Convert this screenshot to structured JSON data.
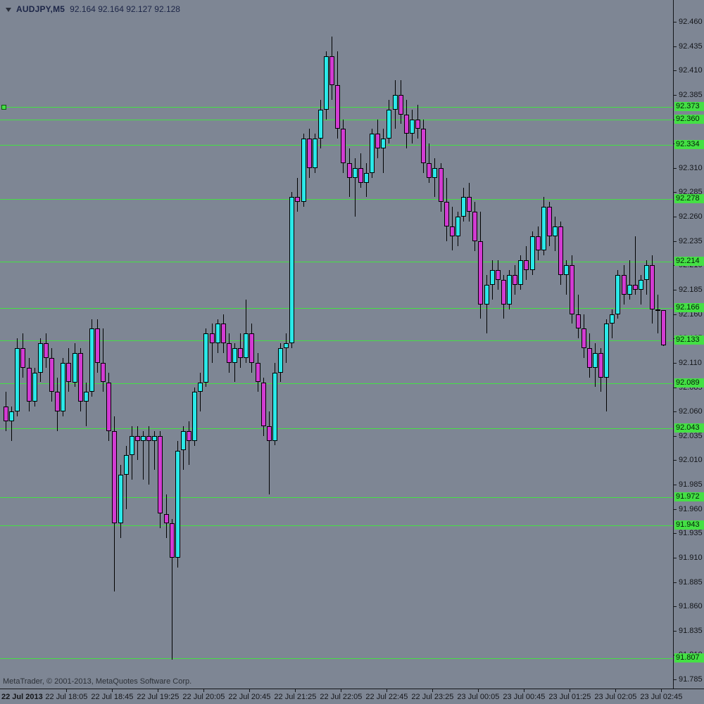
{
  "window": {
    "symbol_label": "AUDJPY,M5",
    "ohlc_values": "92.164 92.164 92.127 92.128",
    "watermark": "MetaTrader, © 2001-2013, MetaQuotes Software Corp."
  },
  "colors": {
    "background": "#7e8694",
    "foreground": "#14161a",
    "header_text": "#1c2547",
    "bull_candle": "#2be8e8",
    "bear_candle": "#d23bd2",
    "wick": "#000000",
    "level_line": "#44e044"
  },
  "axes": {
    "price_ticks": [
      "92.460",
      "92.435",
      "92.410",
      "92.385",
      "92.360",
      "92.335",
      "92.310",
      "92.285",
      "92.260",
      "92.235",
      "92.210",
      "92.185",
      "92.160",
      "92.135",
      "92.110",
      "92.085",
      "92.060",
      "92.035",
      "92.010",
      "91.985",
      "91.960",
      "91.935",
      "91.910",
      "91.885",
      "91.860",
      "91.835",
      "91.810",
      "91.785"
    ],
    "time_ticks": [
      {
        "label": "22 Jul 2013",
        "candle": 0
      },
      {
        "label": "22 Jul 18:05",
        "candle": 11
      },
      {
        "label": "22 Jul 18:45",
        "candle": 19
      },
      {
        "label": "22 Jul 19:25",
        "candle": 27
      },
      {
        "label": "22 Jul 20:05",
        "candle": 35
      },
      {
        "label": "22 Jul 20:45",
        "candle": 43
      },
      {
        "label": "22 Jul 21:25",
        "candle": 51
      },
      {
        "label": "22 Jul 22:05",
        "candle": 59
      },
      {
        "label": "22 Jul 22:45",
        "candle": 67
      },
      {
        "label": "22 Jul 23:25",
        "candle": 75
      },
      {
        "label": "23 Jul 00:05",
        "candle": 83
      },
      {
        "label": "23 Jul 00:45",
        "candle": 91
      },
      {
        "label": "23 Jul 01:25",
        "candle": 99
      },
      {
        "label": "23 Jul 02:05",
        "candle": 107
      },
      {
        "label": "23 Jul 02:45",
        "candle": 115
      }
    ]
  },
  "levels": [
    {
      "price": 92.373,
      "label": "92.373",
      "has_marker": true
    },
    {
      "price": 92.36,
      "label": "92.360",
      "has_marker": false
    },
    {
      "price": 92.334,
      "label": "92.334",
      "has_marker": false
    },
    {
      "price": 92.278,
      "label": "92.278",
      "has_marker": false
    },
    {
      "price": 92.214,
      "label": "92.214",
      "has_marker": false
    },
    {
      "price": 92.166,
      "label": "92.166",
      "has_marker": false
    },
    {
      "price": 92.133,
      "label": "92.133",
      "has_marker": false
    },
    {
      "price": 92.089,
      "label": "92.089",
      "has_marker": false
    },
    {
      "price": 92.043,
      "label": "92.043",
      "has_marker": false
    },
    {
      "price": 91.972,
      "label": "91.972",
      "has_marker": false
    },
    {
      "price": 91.943,
      "label": "91.943",
      "has_marker": false
    },
    {
      "price": 91.807,
      "label": "91.807",
      "has_marker": false
    }
  ],
  "chart_data": {
    "type": "candlestick",
    "symbol": "AUDJPY",
    "timeframe": "M5",
    "title": "AUDJPY,M5",
    "grid": false,
    "legend": false,
    "y_axis": {
      "min": 91.785,
      "max": 92.46,
      "step": 0.025
    },
    "x_range": [
      "22 Jul 17:10",
      "23 Jul 02:45"
    ],
    "current_bar": {
      "open": 92.164,
      "high": 92.164,
      "low": 92.127,
      "close": 92.128
    },
    "candles": [
      [
        "17:10",
        92.065,
        92.08,
        92.04,
        92.05
      ],
      [
        "17:15",
        92.05,
        92.065,
        92.03,
        92.06
      ],
      [
        "17:20",
        92.06,
        92.135,
        92.055,
        92.125
      ],
      [
        "17:25",
        92.125,
        92.14,
        92.095,
        92.105
      ],
      [
        "17:30",
        92.105,
        92.115,
        92.06,
        92.07
      ],
      [
        "17:35",
        92.07,
        92.105,
        92.065,
        92.1
      ],
      [
        "17:40",
        92.1,
        92.135,
        92.09,
        92.13
      ],
      [
        "17:45",
        92.13,
        92.14,
        92.105,
        92.115
      ],
      [
        "17:50",
        92.115,
        92.125,
        92.07,
        92.08
      ],
      [
        "17:55",
        92.08,
        92.095,
        92.04,
        92.06
      ],
      [
        "18:00",
        92.06,
        92.115,
        92.055,
        92.11
      ],
      [
        "18:05",
        92.11,
        92.125,
        92.08,
        92.09
      ],
      [
        "18:10",
        92.09,
        92.13,
        92.085,
        92.12
      ],
      [
        "18:15",
        92.12,
        92.125,
        92.06,
        92.07
      ],
      [
        "18:20",
        92.07,
        92.09,
        92.045,
        92.08
      ],
      [
        "18:25",
        92.08,
        92.155,
        92.075,
        92.145
      ],
      [
        "18:30",
        92.145,
        92.155,
        92.1,
        92.11
      ],
      [
        "18:35",
        92.11,
        92.145,
        92.08,
        92.09
      ],
      [
        "18:40",
        92.09,
        92.1,
        92.03,
        92.04
      ],
      [
        "18:45",
        92.04,
        92.055,
        91.875,
        91.945
      ],
      [
        "18:50",
        91.945,
        92.005,
        91.93,
        91.995
      ],
      [
        "18:55",
        91.995,
        92.025,
        91.96,
        92.015
      ],
      [
        "19:00",
        92.015,
        92.045,
        91.99,
        92.035
      ],
      [
        "19:05",
        92.035,
        92.045,
        92.01,
        92.03
      ],
      [
        "19:10",
        92.03,
        92.04,
        91.99,
        92.035
      ],
      [
        "19:15",
        92.035,
        92.045,
        91.985,
        92.03
      ],
      [
        "19:20",
        92.03,
        92.04,
        92.0,
        92.035
      ],
      [
        "19:25",
        92.035,
        92.04,
        91.94,
        91.955
      ],
      [
        "19:30",
        91.955,
        91.975,
        91.93,
        91.945
      ],
      [
        "19:35",
        91.945,
        91.95,
        91.805,
        91.91
      ],
      [
        "19:40",
        91.91,
        92.03,
        91.9,
        92.02
      ],
      [
        "19:45",
        92.02,
        92.045,
        92.0,
        92.04
      ],
      [
        "19:50",
        92.04,
        92.05,
        92.005,
        92.03
      ],
      [
        "19:55",
        92.03,
        92.085,
        92.025,
        92.08
      ],
      [
        "20:00",
        92.08,
        92.1,
        92.06,
        92.09
      ],
      [
        "20:05",
        92.09,
        92.145,
        92.085,
        92.14
      ],
      [
        "20:10",
        92.14,
        92.15,
        92.11,
        92.13
      ],
      [
        "20:15",
        92.13,
        92.155,
        92.12,
        92.15
      ],
      [
        "20:20",
        92.15,
        92.16,
        92.12,
        92.13
      ],
      [
        "20:25",
        92.13,
        92.14,
        92.1,
        92.11
      ],
      [
        "20:30",
        92.11,
        92.13,
        92.09,
        92.125
      ],
      [
        "20:35",
        92.125,
        92.14,
        92.105,
        92.115
      ],
      [
        "20:40",
        92.115,
        92.175,
        92.11,
        92.14
      ],
      [
        "20:45",
        92.14,
        92.15,
        92.1,
        92.11
      ],
      [
        "20:50",
        92.11,
        92.12,
        92.08,
        92.09
      ],
      [
        "20:55",
        92.09,
        92.095,
        92.035,
        92.045
      ],
      [
        "21:00",
        92.045,
        92.06,
        91.975,
        92.03
      ],
      [
        "21:05",
        92.03,
        92.11,
        92.025,
        92.1
      ],
      [
        "21:10",
        92.1,
        92.13,
        92.09,
        92.125
      ],
      [
        "21:15",
        92.125,
        92.14,
        92.11,
        92.13
      ],
      [
        "21:20",
        92.13,
        92.285,
        92.125,
        92.28
      ],
      [
        "21:25",
        92.28,
        92.3,
        92.265,
        92.275
      ],
      [
        "21:30",
        92.275,
        92.345,
        92.27,
        92.34
      ],
      [
        "21:35",
        92.34,
        92.35,
        92.3,
        92.31
      ],
      [
        "21:40",
        92.31,
        92.345,
        92.305,
        92.34
      ],
      [
        "21:45",
        92.34,
        92.38,
        92.33,
        92.37
      ],
      [
        "21:50",
        92.37,
        92.43,
        92.36,
        92.425
      ],
      [
        "21:55",
        92.425,
        92.445,
        92.38,
        92.395
      ],
      [
        "22:00",
        92.395,
        92.43,
        92.34,
        92.35
      ],
      [
        "22:05",
        92.35,
        92.36,
        92.305,
        92.315
      ],
      [
        "22:10",
        92.315,
        92.33,
        92.28,
        92.3
      ],
      [
        "22:15",
        92.3,
        92.32,
        92.26,
        92.31
      ],
      [
        "22:20",
        92.31,
        92.325,
        92.29,
        92.295
      ],
      [
        "22:25",
        92.295,
        92.315,
        92.28,
        92.305
      ],
      [
        "22:30",
        92.305,
        92.35,
        92.3,
        92.345
      ],
      [
        "22:35",
        92.345,
        92.36,
        92.32,
        92.33
      ],
      [
        "22:40",
        92.33,
        92.35,
        92.305,
        92.34
      ],
      [
        "22:45",
        92.34,
        92.38,
        92.335,
        92.37
      ],
      [
        "22:50",
        92.37,
        92.4,
        92.35,
        92.385
      ],
      [
        "22:55",
        92.385,
        92.4,
        92.355,
        92.365
      ],
      [
        "23:00",
        92.365,
        92.38,
        92.33,
        92.345
      ],
      [
        "23:05",
        92.345,
        92.37,
        92.335,
        92.36
      ],
      [
        "23:10",
        92.36,
        92.375,
        92.34,
        92.35
      ],
      [
        "23:15",
        92.35,
        92.36,
        92.305,
        92.315
      ],
      [
        "23:20",
        92.315,
        92.335,
        92.295,
        92.3
      ],
      [
        "23:25",
        92.3,
        92.32,
        92.28,
        92.31
      ],
      [
        "23:30",
        92.31,
        92.315,
        92.265,
        92.275
      ],
      [
        "23:35",
        92.275,
        92.3,
        92.235,
        92.25
      ],
      [
        "23:40",
        92.25,
        92.27,
        92.225,
        92.24
      ],
      [
        "23:45",
        92.24,
        92.265,
        92.23,
        92.26
      ],
      [
        "23:50",
        92.26,
        92.29,
        92.255,
        92.28
      ],
      [
        "23:55",
        92.28,
        92.295,
        92.255,
        92.265
      ],
      [
        "00:00",
        92.265,
        92.275,
        92.225,
        92.235
      ],
      [
        "00:05",
        92.235,
        92.265,
        92.155,
        92.17
      ],
      [
        "00:10",
        92.17,
        92.2,
        92.14,
        92.19
      ],
      [
        "00:15",
        92.19,
        92.215,
        92.175,
        92.205
      ],
      [
        "00:20",
        92.205,
        92.215,
        92.185,
        92.195
      ],
      [
        "00:25",
        92.195,
        92.2,
        92.155,
        92.17
      ],
      [
        "00:30",
        92.17,
        92.205,
        92.165,
        92.2
      ],
      [
        "00:35",
        92.2,
        92.21,
        92.18,
        92.19
      ],
      [
        "00:40",
        92.19,
        92.22,
        92.185,
        92.215
      ],
      [
        "00:45",
        92.215,
        92.23,
        92.195,
        92.205
      ],
      [
        "00:50",
        92.205,
        92.245,
        92.2,
        92.24
      ],
      [
        "00:55",
        92.24,
        92.25,
        92.215,
        92.225
      ],
      [
        "01:00",
        92.225,
        92.28,
        92.22,
        92.27
      ],
      [
        "01:05",
        92.27,
        92.275,
        92.23,
        92.24
      ],
      [
        "01:10",
        92.24,
        92.26,
        92.225,
        92.25
      ],
      [
        "01:15",
        92.25,
        92.255,
        92.19,
        92.2
      ],
      [
        "01:20",
        92.2,
        92.215,
        92.18,
        92.21
      ],
      [
        "01:25",
        92.21,
        92.22,
        92.15,
        92.16
      ],
      [
        "01:30",
        92.16,
        92.18,
        92.135,
        92.145
      ],
      [
        "01:35",
        92.145,
        92.16,
        92.115,
        92.125
      ],
      [
        "01:40",
        92.125,
        92.14,
        92.095,
        92.105
      ],
      [
        "01:45",
        92.105,
        92.13,
        92.085,
        92.12
      ],
      [
        "01:50",
        92.12,
        92.125,
        92.08,
        92.095
      ],
      [
        "01:55",
        92.095,
        92.155,
        92.06,
        92.15
      ],
      [
        "02:00",
        92.15,
        92.165,
        92.135,
        92.16
      ],
      [
        "02:05",
        92.16,
        92.205,
        92.155,
        92.2
      ],
      [
        "02:10",
        92.2,
        92.21,
        92.17,
        92.18
      ],
      [
        "02:15",
        92.18,
        92.215,
        92.175,
        92.19
      ],
      [
        "02:20",
        92.19,
        92.24,
        92.18,
        92.185
      ],
      [
        "02:25",
        92.185,
        92.2,
        92.17,
        92.195
      ],
      [
        "02:30",
        92.195,
        92.215,
        92.18,
        92.21
      ],
      [
        "02:35",
        92.21,
        92.22,
        92.15,
        92.165
      ],
      [
        "02:40",
        92.165,
        92.18,
        92.14,
        92.164
      ],
      [
        "02:45",
        92.164,
        92.164,
        92.127,
        92.128
      ]
    ]
  }
}
